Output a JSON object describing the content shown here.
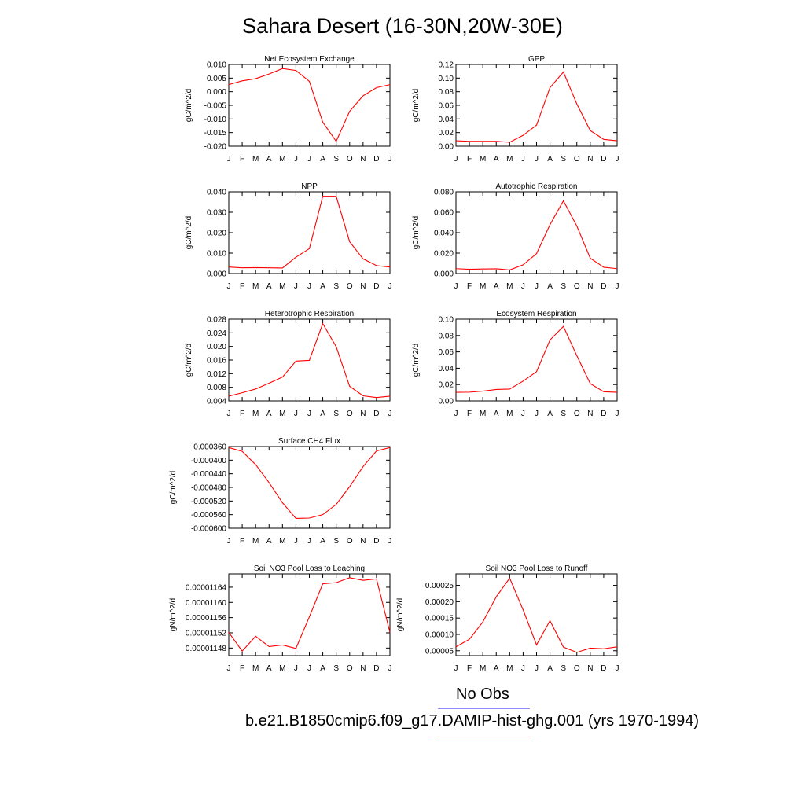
{
  "title": "Sahara Desert (16-30N,20W-30E)",
  "legend": [
    {
      "label": "No Obs",
      "color": "#8c8cff"
    },
    {
      "label": "b.e21.B1850cmip6.f09_g17.DAMIP-hist-ghg.001 (yrs 1970-1994)",
      "color": "#ff8c8c"
    }
  ],
  "line_color": "#ff0000",
  "chart_data": [
    {
      "type": "line",
      "title": "Net Ecosystem Exchange",
      "ylabel": "gC/m^2/d",
      "categories": [
        "J",
        "F",
        "M",
        "A",
        "M",
        "J",
        "J",
        "A",
        "S",
        "O",
        "N",
        "D",
        "J"
      ],
      "values": [
        0.0026,
        0.004,
        0.0048,
        0.0065,
        0.0085,
        0.0078,
        0.0038,
        -0.0112,
        -0.0182,
        -0.0072,
        -0.0015,
        0.0015,
        0.0026
      ],
      "ylim": [
        -0.02,
        0.01
      ],
      "yticks": [
        "0.010",
        "0.005",
        "0.000",
        "-0.005",
        "-0.010",
        "-0.015",
        "-0.020"
      ]
    },
    {
      "type": "line",
      "title": "GPP",
      "ylabel": "gC/m^2/d",
      "categories": [
        "J",
        "F",
        "M",
        "A",
        "M",
        "J",
        "J",
        "A",
        "S",
        "O",
        "N",
        "D",
        "J"
      ],
      "values": [
        0.008,
        0.0072,
        0.0072,
        0.0072,
        0.0058,
        0.016,
        0.031,
        0.086,
        0.109,
        0.062,
        0.023,
        0.01,
        0.008
      ],
      "ylim": [
        0.0,
        0.12
      ],
      "yticks": [
        "0.12",
        "0.10",
        "0.08",
        "0.06",
        "0.04",
        "0.02",
        "0.00"
      ]
    },
    {
      "type": "line",
      "title": "NPP",
      "ylabel": "gC/m^2/d",
      "categories": [
        "J",
        "F",
        "M",
        "A",
        "M",
        "J",
        "J",
        "A",
        "S",
        "O",
        "N",
        "D",
        "J"
      ],
      "values": [
        0.0032,
        0.0028,
        0.0029,
        0.0028,
        0.0027,
        0.008,
        0.0122,
        0.0378,
        0.0378,
        0.0156,
        0.0072,
        0.0039,
        0.0032
      ],
      "ylim": [
        0.0,
        0.04
      ],
      "yticks": [
        "0.040",
        "0.030",
        "0.020",
        "0.010",
        "0.000"
      ]
    },
    {
      "type": "line",
      "title": "Autotrophic Respiration",
      "ylabel": "gC/m^2/d",
      "categories": [
        "J",
        "F",
        "M",
        "A",
        "M",
        "J",
        "J",
        "A",
        "S",
        "O",
        "N",
        "D",
        "J"
      ],
      "values": [
        0.0048,
        0.0042,
        0.0045,
        0.0047,
        0.0035,
        0.0085,
        0.0195,
        0.0478,
        0.0712,
        0.0465,
        0.015,
        0.0062,
        0.0048
      ],
      "ylim": [
        0.0,
        0.08
      ],
      "yticks": [
        "0.080",
        "0.060",
        "0.040",
        "0.020",
        "0.000"
      ]
    },
    {
      "type": "line",
      "title": "Heterotrophic Respiration",
      "ylabel": "gC/m^2/d",
      "categories": [
        "J",
        "F",
        "M",
        "A",
        "M",
        "J",
        "J",
        "A",
        "S",
        "O",
        "N",
        "D",
        "J"
      ],
      "values": [
        0.0054,
        0.0064,
        0.0075,
        0.0092,
        0.011,
        0.0157,
        0.0159,
        0.0267,
        0.0199,
        0.0083,
        0.0055,
        0.005,
        0.0054
      ],
      "ylim": [
        0.004,
        0.028
      ],
      "yticks": [
        "0.028",
        "0.024",
        "0.020",
        "0.016",
        "0.012",
        "0.008",
        "0.004"
      ]
    },
    {
      "type": "line",
      "title": "Ecosystem Respiration",
      "ylabel": "gC/m^2/d",
      "categories": [
        "J",
        "F",
        "M",
        "A",
        "M",
        "J",
        "J",
        "A",
        "S",
        "O",
        "N",
        "D",
        "J"
      ],
      "values": [
        0.0105,
        0.0107,
        0.012,
        0.014,
        0.0145,
        0.0242,
        0.0358,
        0.0745,
        0.0912,
        0.0553,
        0.0212,
        0.0112,
        0.0105
      ],
      "ylim": [
        0.0,
        0.1
      ],
      "yticks": [
        "0.10",
        "0.08",
        "0.06",
        "0.04",
        "0.02",
        "0.00"
      ]
    },
    {
      "type": "line",
      "title": "Surface CH4 Flux",
      "ylabel": "gC/m^2/d",
      "categories": [
        "J",
        "F",
        "M",
        "A",
        "M",
        "J",
        "J",
        "A",
        "S",
        "O",
        "N",
        "D",
        "J"
      ],
      "values": [
        -0.000363,
        -0.000374,
        -0.000413,
        -0.000466,
        -0.000525,
        -0.000571,
        -0.00057,
        -0.00056,
        -0.00053,
        -0.000478,
        -0.000419,
        -0.000373,
        -0.000363
      ],
      "ylim": [
        -0.0006,
        -0.00036
      ],
      "yticks": [
        "-0.000360",
        "-0.000400",
        "-0.000440",
        "-0.000480",
        "-0.000520",
        "-0.000560",
        "-0.000600"
      ]
    },
    {
      "type": "line",
      "title": "Soil NO3 Pool Loss to Leaching",
      "ylabel": "gN/m^2/d",
      "categories": [
        "J",
        "F",
        "M",
        "A",
        "M",
        "J",
        "J",
        "A",
        "S",
        "O",
        "N",
        "D",
        "J"
      ],
      "values": [
        1.1521e-05,
        1.1472e-05,
        1.1511e-05,
        1.1484e-05,
        1.1488e-05,
        1.1479e-05,
        1.1562e-05,
        1.1649e-05,
        1.1652e-05,
        1.1665e-05,
        1.1658e-05,
        1.1662e-05,
        1.1521e-05
      ],
      "ylim": [
        1.146e-05,
        1.1675e-05
      ],
      "yticks": [
        "0.00001164",
        "0.00001160",
        "0.00001156",
        "0.00001152",
        "0.00001148"
      ],
      "ytick_values": [
        1.164e-05,
        1.16e-05,
        1.156e-05,
        1.152e-05,
        1.148e-05
      ]
    },
    {
      "type": "line",
      "title": "Soil NO3 Pool Loss to Runoff",
      "ylabel": "gN/m^2/d",
      "categories": [
        "J",
        "F",
        "M",
        "A",
        "M",
        "J",
        "J",
        "A",
        "S",
        "O",
        "N",
        "D",
        "J"
      ],
      "values": [
        6.2e-05,
        8.5e-05,
        0.000138,
        0.000215,
        0.000272,
        0.000175,
        6.8e-05,
        0.000142,
        6.1e-05,
        4.5e-05,
        5.8e-05,
        5.6e-05,
        6.2e-05
      ],
      "ylim": [
        3.5e-05,
        0.000285
      ],
      "yticks": [
        "0.00025",
        "0.00020",
        "0.00015",
        "0.00010",
        "0.00005"
      ],
      "ytick_values": [
        0.00025,
        0.0002,
        0.00015,
        0.0001,
        5e-05
      ]
    }
  ]
}
